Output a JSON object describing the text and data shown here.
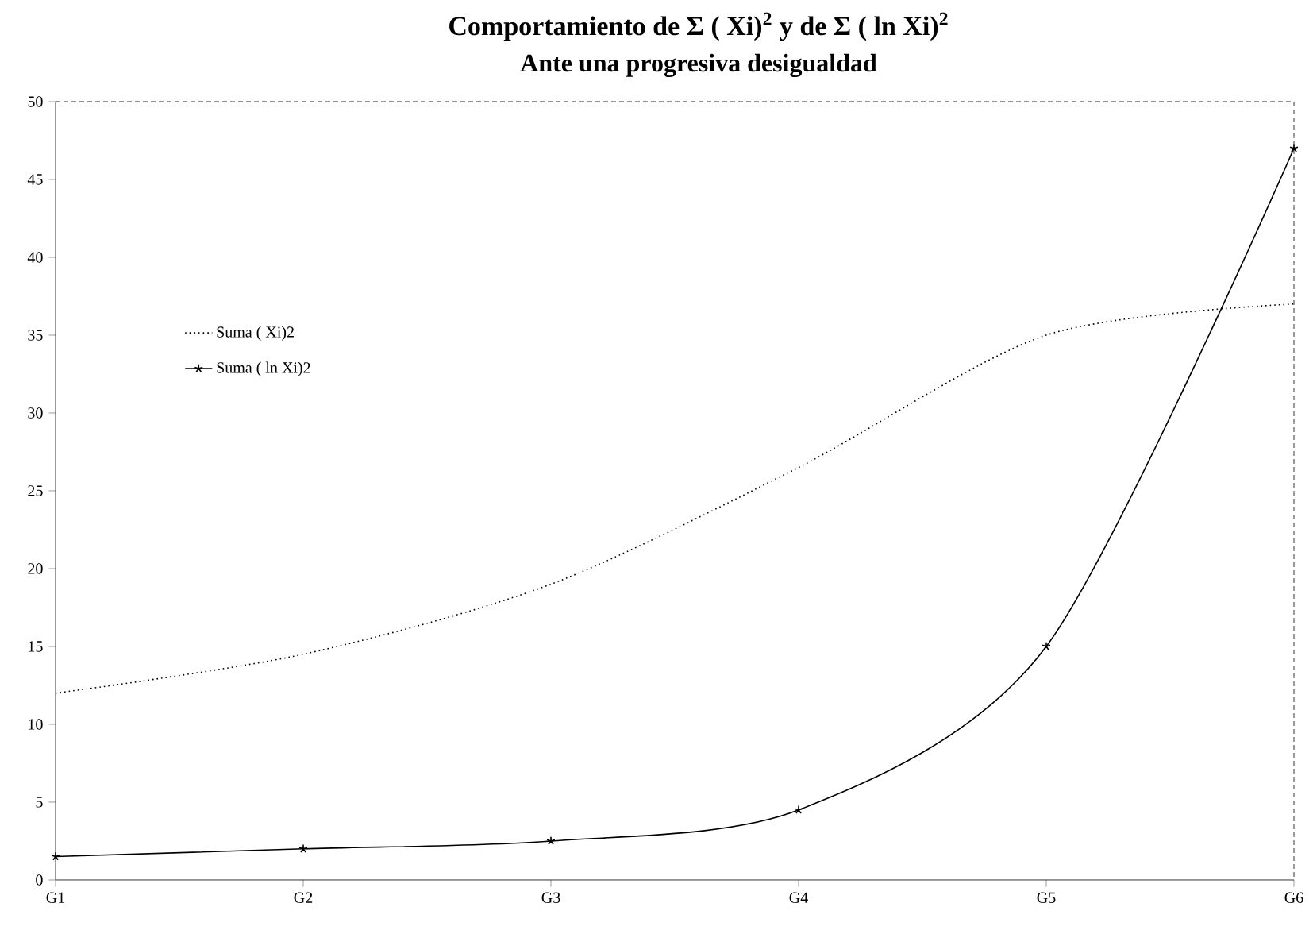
{
  "chart_data": {
    "type": "line",
    "title": "Comportamiento de Σ ( Xi)$^{2}$  y de  Σ ( ln  Xi)$^{2}$",
    "subtitle": "Ante una progresiva desigualdad",
    "categories": [
      "G1",
      "G2",
      "G3",
      "G4",
      "G5",
      "G6"
    ],
    "series": [
      {
        "name": "Suma ( Xi)2",
        "color": "#000000",
        "values": [
          12,
          14.5,
          19,
          26.5,
          35,
          37
        ],
        "line_style": "dotted",
        "marker": "none"
      },
      {
        "name": "Suma ( ln Xi)2",
        "color": "#000000",
        "values": [
          1.5,
          2,
          2.5,
          4.5,
          15,
          47
        ],
        "line_style": "solid",
        "marker": "cross"
      }
    ],
    "ylim": [
      0,
      50
    ],
    "yticks": [
      0,
      5,
      10,
      15,
      20,
      25,
      30,
      35,
      40,
      45,
      50
    ],
    "grid": false,
    "legend": "left"
  }
}
